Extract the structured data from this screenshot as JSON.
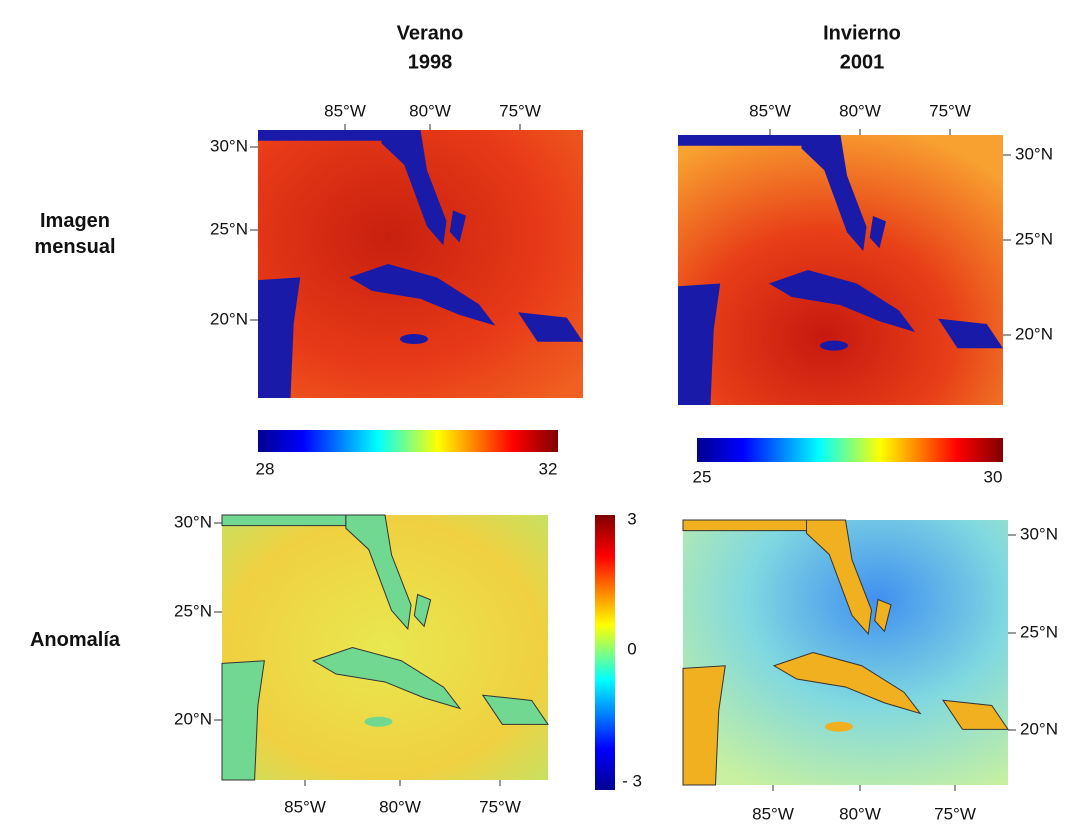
{
  "columns": [
    {
      "title": "Verano",
      "year": "1998"
    },
    {
      "title": "Invierno",
      "year": "2001"
    }
  ],
  "row_labels": [
    "Imagen mensual",
    "Anomalía"
  ],
  "panels": [
    {
      "lon_labels": [
        "85°W",
        "80°W",
        "75°W"
      ],
      "lat_labels": [
        "30°N",
        "25°N",
        "20°N"
      ]
    },
    {
      "lon_labels": [
        "85°W",
        "80°W",
        "75°W"
      ],
      "lat_labels": [
        "30°N",
        "25°N",
        "20°N"
      ]
    },
    {
      "lon_labels": [
        "85°W",
        "80°W",
        "75°W"
      ],
      "lat_labels": [
        "30°N",
        "25°N",
        "20°N"
      ]
    },
    {
      "lon_labels": [
        "85°W",
        "80°W",
        "75°W"
      ],
      "lat_labels": [
        "30°N",
        "25°N",
        "20°N"
      ]
    }
  ],
  "colorbars": [
    {
      "ticks": [
        28,
        32
      ]
    },
    {
      "ticks": [
        25,
        30
      ]
    },
    {
      "ticks": [
        3,
        0,
        {
          "value": -3,
          "label": "- 3"
        }
      ]
    }
  ]
}
